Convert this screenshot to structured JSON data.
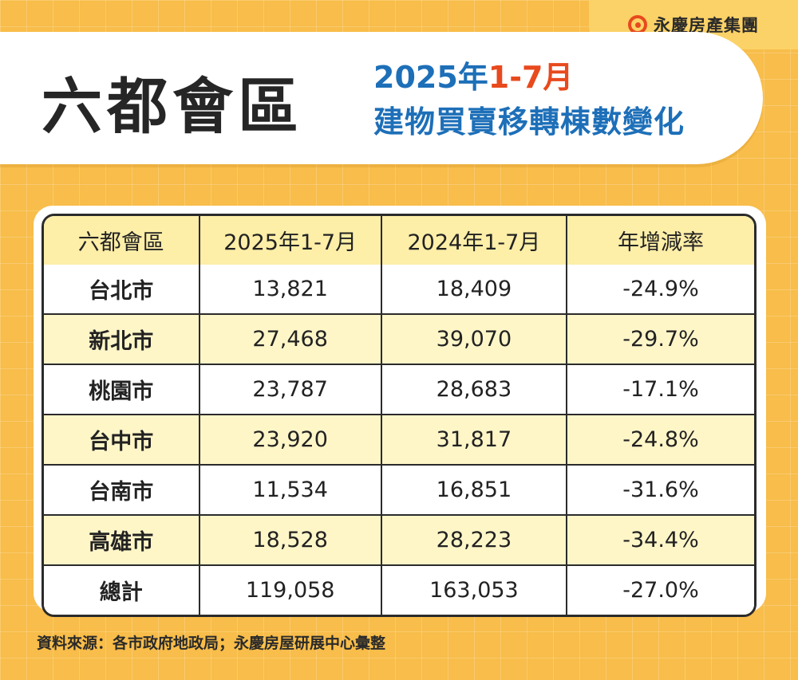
{
  "brand": {
    "name": "永慶房產集團",
    "logo_icon": "yungching-logo-icon",
    "accent": "#e8491d"
  },
  "title": {
    "main": "六都會區",
    "year": "2025年",
    "range": "1-7月",
    "subtitle": "建物買賣移轉棟數變化"
  },
  "colors": {
    "background": "#f8bd4a",
    "header_row": "#fdeea8",
    "stripe_row": "#fff6c8",
    "title_blue": "#1d6fb8"
  },
  "chart_data": {
    "type": "table",
    "title": "六都會區 2025年1-7月 建物買賣移轉棟數變化",
    "columns": [
      "六都會區",
      "2025年1-7月",
      "2024年1-7月",
      "年增減率"
    ],
    "rows": [
      [
        "台北市",
        "13,821",
        "18,409",
        "-24.9%"
      ],
      [
        "新北市",
        "27,468",
        "39,070",
        "-29.7%"
      ],
      [
        "桃園市",
        "23,787",
        "28,683",
        "-17.1%"
      ],
      [
        "台中市",
        "23,920",
        "31,817",
        "-24.8%"
      ],
      [
        "台南市",
        "11,534",
        "16,851",
        "-31.6%"
      ],
      [
        "高雄市",
        "18,528",
        "28,223",
        "-34.4%"
      ],
      [
        "總計",
        "119,058",
        "163,053",
        "-27.0%"
      ]
    ]
  },
  "footer": {
    "source": "資料來源：各市政府地政局；永慶房屋研展中心彙整"
  }
}
